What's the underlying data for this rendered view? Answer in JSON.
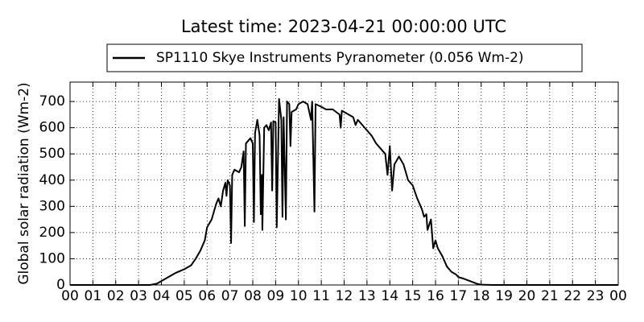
{
  "chart_data": {
    "type": "line",
    "title": "Latest time: 2023-04-21 00:00:00 UTC",
    "y_label": "Global solar radiation (Wm-2)",
    "x": [
      0,
      1,
      2,
      3,
      3.5,
      3.8,
      4.0,
      4.3,
      4.6,
      5.0,
      5.3,
      5.5,
      5.7,
      5.9,
      6.0,
      6.2,
      6.4,
      6.5,
      6.6,
      6.7,
      6.8,
      6.85,
      6.9,
      7.0,
      7.05,
      7.1,
      7.2,
      7.4,
      7.5,
      7.6,
      7.65,
      7.7,
      7.9,
      8.0,
      8.05,
      8.1,
      8.2,
      8.3,
      8.35,
      8.4,
      8.42,
      8.5,
      8.6,
      8.7,
      8.8,
      8.85,
      8.9,
      9.0,
      9.05,
      9.15,
      9.25,
      9.3,
      9.35,
      9.45,
      9.5,
      9.6,
      9.65,
      9.7,
      9.9,
      10.0,
      10.2,
      10.4,
      10.55,
      10.6,
      10.7,
      10.75,
      11.0,
      11.2,
      11.5,
      11.8,
      11.85,
      11.9,
      12.2,
      12.4,
      12.5,
      12.6,
      12.9,
      13.0,
      13.2,
      13.4,
      13.6,
      13.8,
      13.9,
      14.0,
      14.1,
      14.2,
      14.4,
      14.6,
      14.8,
      15.0,
      15.2,
      15.4,
      15.5,
      15.6,
      15.65,
      15.8,
      15.9,
      16.0,
      16.1,
      16.3,
      16.5,
      16.7,
      16.9,
      17.0,
      17.2,
      17.5,
      17.8,
      18.0,
      18.5,
      20,
      22,
      24
    ],
    "series": [
      {
        "name": "SP1110 Skye Instruments Pyranometer (0.056 Wm-2)",
        "color": "#000000",
        "values": [
          0,
          0,
          0,
          0,
          0,
          5,
          15,
          30,
          45,
          60,
          75,
          100,
          130,
          170,
          220,
          250,
          310,
          330,
          300,
          360,
          390,
          340,
          400,
          380,
          160,
          420,
          440,
          430,
          450,
          510,
          225,
          540,
          560,
          540,
          240,
          580,
          630,
          570,
          270,
          420,
          210,
          600,
          610,
          590,
          620,
          360,
          625,
          620,
          220,
          710,
          630,
          260,
          640,
          250,
          700,
          690,
          530,
          660,
          670,
          690,
          700,
          690,
          630,
          700,
          280,
          690,
          680,
          670,
          670,
          650,
          600,
          665,
          650,
          640,
          610,
          630,
          600,
          590,
          570,
          540,
          520,
          500,
          420,
          530,
          360,
          460,
          490,
          460,
          400,
          380,
          330,
          290,
          260,
          270,
          210,
          250,
          140,
          170,
          140,
          110,
          70,
          50,
          40,
          30,
          25,
          15,
          5,
          1,
          0,
          0,
          0,
          0
        ]
      }
    ],
    "xlim": [
      0,
      24
    ],
    "xticks": [
      {
        "value": 0,
        "label": "00"
      },
      {
        "value": 1,
        "label": "01"
      },
      {
        "value": 2,
        "label": "02"
      },
      {
        "value": 3,
        "label": "03"
      },
      {
        "value": 4,
        "label": "04"
      },
      {
        "value": 5,
        "label": "05"
      },
      {
        "value": 6,
        "label": "06"
      },
      {
        "value": 7,
        "label": "07"
      },
      {
        "value": 8,
        "label": "08"
      },
      {
        "value": 9,
        "label": "09"
      },
      {
        "value": 10,
        "label": "10"
      },
      {
        "value": 11,
        "label": "11"
      },
      {
        "value": 12,
        "label": "12"
      },
      {
        "value": 13,
        "label": "13"
      },
      {
        "value": 14,
        "label": "14"
      },
      {
        "value": 15,
        "label": "15"
      },
      {
        "value": 16,
        "label": "16"
      },
      {
        "value": 17,
        "label": "17"
      },
      {
        "value": 18,
        "label": "18"
      },
      {
        "value": 19,
        "label": "19"
      },
      {
        "value": 20,
        "label": "20"
      },
      {
        "value": 21,
        "label": "21"
      },
      {
        "value": 22,
        "label": "22"
      },
      {
        "value": 23,
        "label": "23"
      },
      {
        "value": 24,
        "label": "00"
      }
    ],
    "ylim": [
      0,
      774
    ],
    "yticks": [
      0,
      100,
      200,
      300,
      400,
      500,
      600,
      700
    ],
    "grid": true
  }
}
